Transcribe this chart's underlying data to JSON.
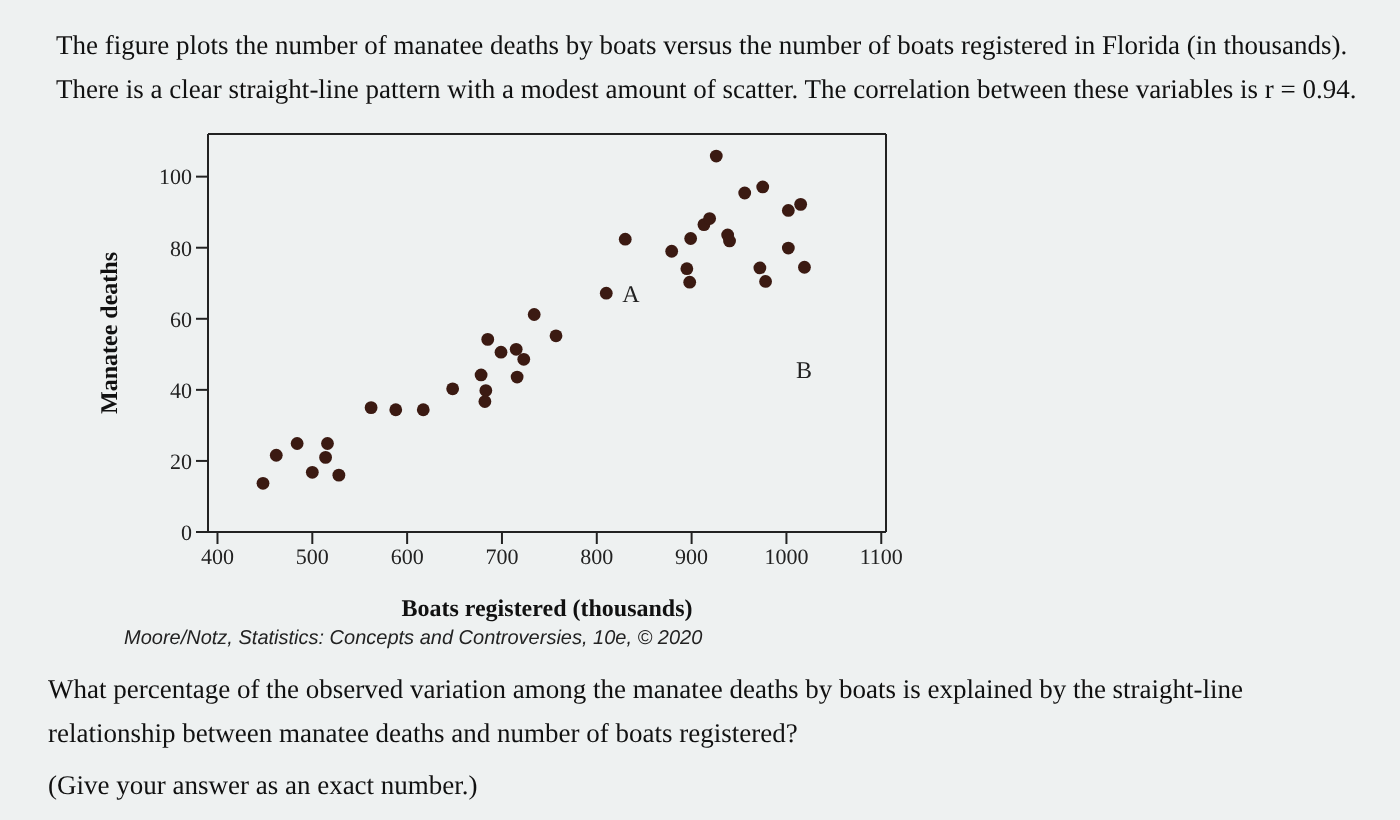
{
  "chart_data": {
    "type": "scatter",
    "title": "The figure plots the number of manatee deaths by boats versus the number of boats registered in Florida (in thousands). There is a clear straight-line pattern with a modest amount of scatter. The correlation between these variables is r = 0.94.",
    "xlabel": "Boats registered (thousands)",
    "ylabel": "Manatee deaths",
    "x": [
      448,
      462,
      484,
      500,
      516,
      514,
      528,
      562,
      588,
      617,
      648,
      678,
      683,
      682,
      685,
      699,
      715,
      723,
      716,
      734,
      757,
      810,
      830,
      879,
      895,
      898,
      899,
      913,
      919,
      926,
      938,
      940,
      956,
      975,
      972,
      978,
      1002,
      1002,
      1015,
      1019
    ],
    "series": [
      {
        "color": "#3b1a12",
        "values": [
          13.7,
          21.6,
          24.9,
          16.8,
          24.9,
          21,
          16,
          35,
          34.4,
          34.4,
          40.3,
          44.2,
          39.8,
          36.7,
          54.2,
          50.6,
          51.4,
          48.6,
          43.6,
          61.2,
          55.2,
          67.2,
          82.4,
          79,
          74.1,
          70.3,
          82.6,
          86.5,
          88.2,
          105.8,
          83.6,
          81.9,
          95.4,
          97.1,
          74.3,
          70.5,
          90.5,
          79.9,
          92.2,
          74.5
        ]
      }
    ],
    "marker": "circle",
    "xlim": [
      390,
      1105
    ],
    "ylim": [
      0,
      112
    ],
    "xticks": [
      400,
      500,
      600,
      700,
      800,
      900,
      1000,
      1100
    ],
    "yticks": [
      0,
      20,
      40,
      60,
      80,
      100
    ],
    "grid": false,
    "legend": false,
    "annotations": [
      {
        "text": "A",
        "x": 810,
        "y": 67.2
      },
      "B",
      "Moore/Notz, Statistics: Concepts and Controversies, 10e, © 2020",
      "What percentage of the observed variation among the manatee deaths by boats is explained by the straight-line relationship between manatee deaths and number of boats registered?",
      "(Give your answer as an exact number.)"
    ]
  }
}
